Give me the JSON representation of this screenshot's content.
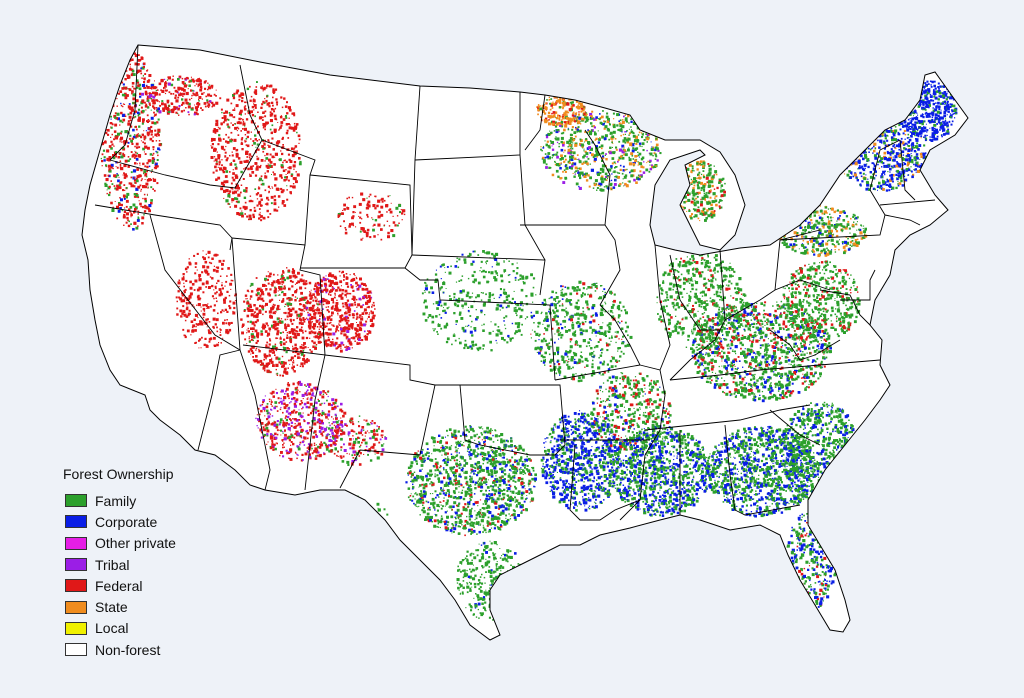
{
  "legend": {
    "title": "Forest Ownership",
    "items": [
      {
        "key": "family",
        "label": "Family",
        "color": "#2ca02c"
      },
      {
        "key": "corporate",
        "label": "Corporate",
        "color": "#0a1ee6"
      },
      {
        "key": "other_private",
        "label": "Other private",
        "color": "#e61ee6"
      },
      {
        "key": "tribal",
        "label": "Tribal",
        "color": "#9b1ee6"
      },
      {
        "key": "federal",
        "label": "Federal",
        "color": "#e01818"
      },
      {
        "key": "state",
        "label": "State",
        "color": "#f08c1e"
      },
      {
        "key": "local",
        "label": "Local",
        "color": "#f0f000"
      },
      {
        "key": "non_forest",
        "label": "Non-forest",
        "color": "#ffffff"
      }
    ]
  },
  "map": {
    "region": "contiguous-united-states",
    "background_color": "#eef2f8",
    "border_color": "#000000"
  }
}
